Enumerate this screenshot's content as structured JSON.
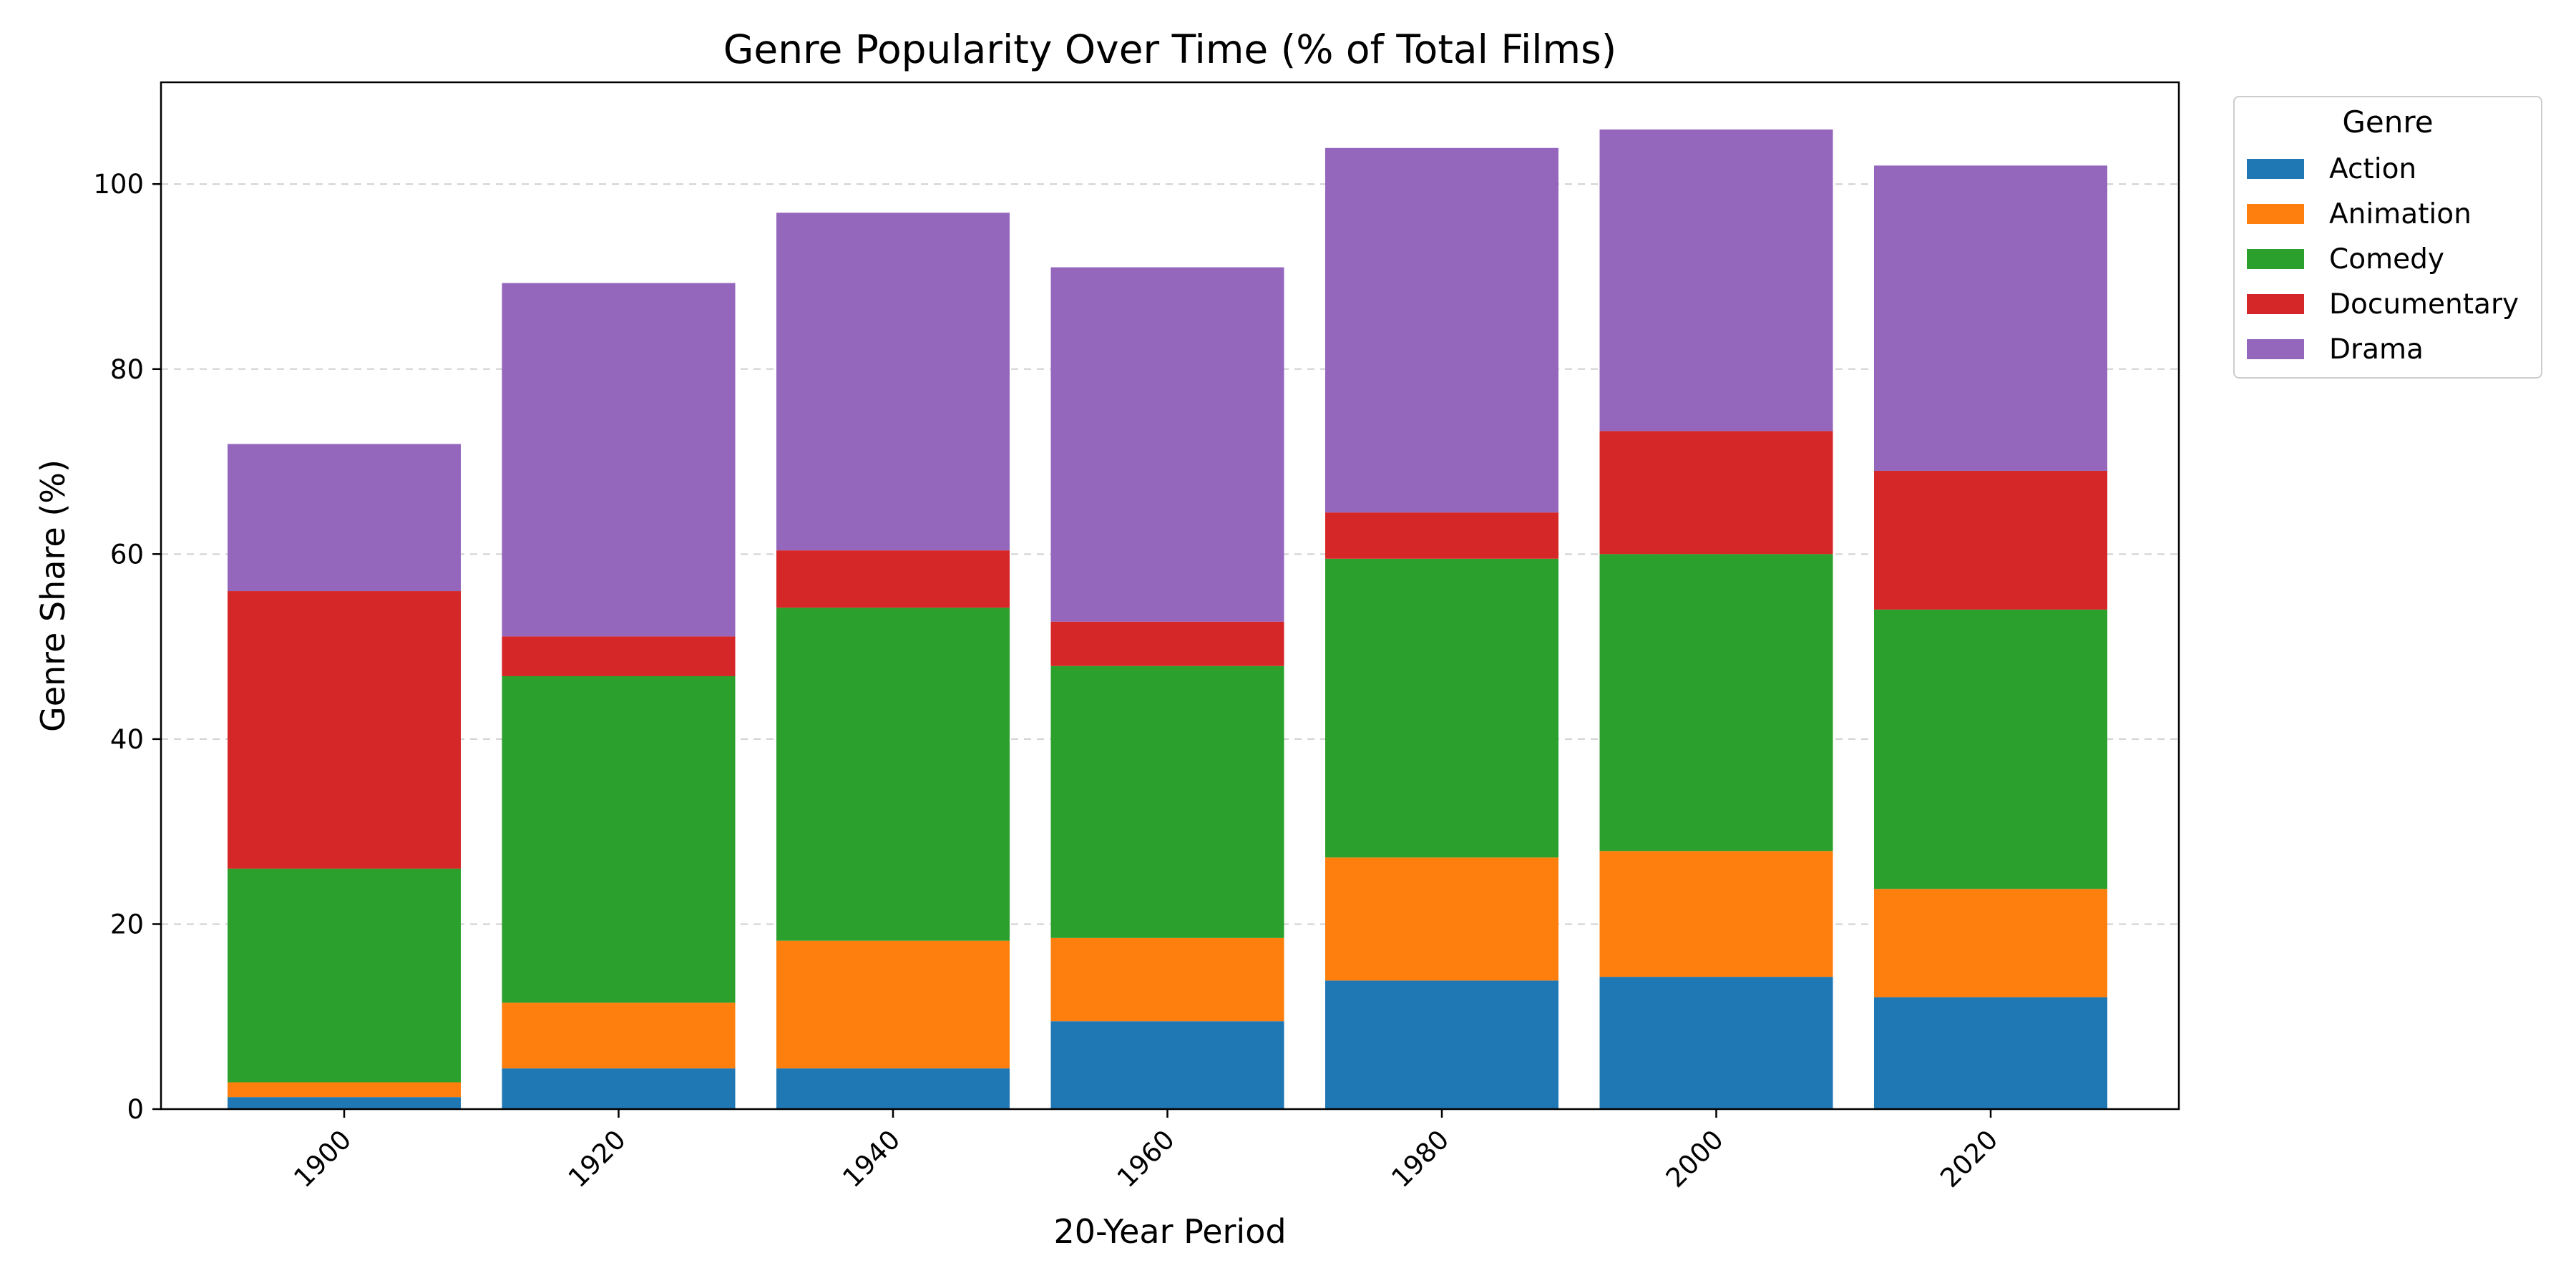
{
  "chart_data": {
    "type": "bar",
    "stacked": true,
    "title": "Genre Popularity Over Time (% of Total Films)",
    "xlabel": "20-Year Period",
    "ylabel": "Genre Share (%)",
    "ylim": [
      0,
      111
    ],
    "yticks": [
      0,
      20,
      40,
      60,
      80,
      100
    ],
    "grid": "y-dashed",
    "legend_title": "Genre",
    "legend_position": "outside-top-right",
    "categories": [
      "1900",
      "1920",
      "1940",
      "1960",
      "1980",
      "2000",
      "2020"
    ],
    "series": [
      {
        "name": "Action",
        "color": "#1f77b4",
        "values": [
          1.3,
          4.4,
          4.4,
          9.5,
          13.9,
          14.3,
          12.1
        ]
      },
      {
        "name": "Animation",
        "color": "#ff7f0e",
        "values": [
          1.6,
          7.1,
          13.8,
          9.0,
          13.3,
          13.6,
          11.7
        ]
      },
      {
        "name": "Comedy",
        "color": "#2ca02c",
        "values": [
          23.1,
          35.3,
          36.0,
          29.4,
          32.3,
          32.1,
          30.2
        ]
      },
      {
        "name": "Documentary",
        "color": "#d62728",
        "values": [
          30.0,
          4.3,
          6.2,
          4.8,
          5.0,
          13.3,
          15.0
        ]
      },
      {
        "name": "Drama",
        "color": "#9467bd",
        "values": [
          15.9,
          38.2,
          36.5,
          38.3,
          39.4,
          32.6,
          33.0
        ]
      }
    ]
  }
}
